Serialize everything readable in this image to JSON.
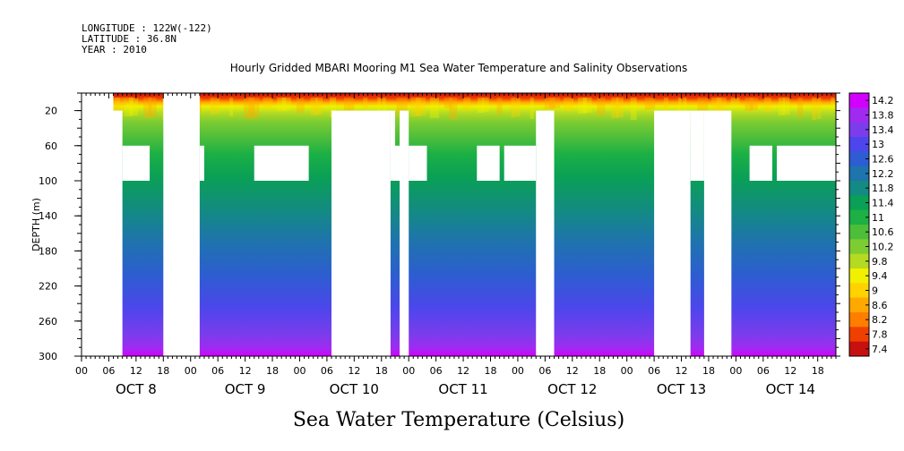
{
  "meta": {
    "longitude": "LONGITUDE : 122W(-122)",
    "latitude": "LATITUDE : 36.8N",
    "year": "YEAR : 2010"
  },
  "chart_data": {
    "type": "heatmap",
    "title": "Hourly Gridded MBARI Mooring M1 Sea Water Temperature and Salinity Observations",
    "xlabel": "Sea Water Temperature (Celsius)",
    "ylabel": "DEPTH (m)",
    "x_range_hours": [
      0,
      166
    ],
    "x_hour_tick_labels": [
      "00",
      "06",
      "12",
      "18"
    ],
    "x_day_labels": [
      "OCT  8",
      "OCT  9",
      "OCT 10",
      "OCT 11",
      "OCT 12",
      "OCT 13",
      "OCT 14"
    ],
    "y_range": [
      0,
      300
    ],
    "y_ticks": [
      20,
      60,
      100,
      140,
      180,
      220,
      260,
      300
    ],
    "y_inverted": true,
    "colorbar": {
      "values": [
        7.4,
        7.8,
        8.2,
        8.6,
        9,
        9.4,
        9.8,
        10.2,
        10.6,
        11,
        11.4,
        11.8,
        12.2,
        12.6,
        13,
        13.4,
        13.8,
        14.2
      ],
      "labels": [
        "14.2",
        "13.8",
        "13.4",
        "13",
        "12.6",
        "12.2",
        "11.8",
        "11.4",
        "11",
        "10.6",
        "10.2",
        "9.8",
        "9.4",
        "9",
        "8.6",
        "8.2",
        "7.8",
        "7.4"
      ],
      "colors": [
        "#d200ff",
        "#a12af0",
        "#7c3cec",
        "#4d46ec",
        "#2e5cd2",
        "#1e74ac",
        "#138a83",
        "#0aa055",
        "#1cb045",
        "#4cbe3a",
        "#7ccc32",
        "#b4da22",
        "#f0f000",
        "#ffd200",
        "#ffa800",
        "#ff7e00",
        "#f04000",
        "#c81010"
      ]
    },
    "missing_blocks": [
      {
        "hours": [
          0,
          7
        ],
        "depth": [
          0,
          300
        ]
      },
      {
        "hours": [
          7,
          9
        ],
        "depth": [
          20,
          300
        ]
      },
      {
        "hours": [
          9,
          15
        ],
        "depth": [
          60,
          100
        ]
      },
      {
        "hours": [
          18,
          26
        ],
        "depth": [
          0,
          300
        ]
      },
      {
        "hours": [
          26,
          27
        ],
        "depth": [
          60,
          100
        ]
      },
      {
        "hours": [
          38,
          50
        ],
        "depth": [
          60,
          100
        ]
      },
      {
        "hours": [
          55,
          68
        ],
        "depth": [
          20,
          300
        ]
      },
      {
        "hours": [
          68,
          69
        ],
        "depth": [
          20,
          100
        ]
      },
      {
        "hours": [
          69,
          72
        ],
        "depth": [
          60,
          100
        ]
      },
      {
        "hours": [
          70,
          72
        ],
        "depth": [
          20,
          300
        ]
      },
      {
        "hours": [
          72,
          76
        ],
        "depth": [
          60,
          100
        ]
      },
      {
        "hours": [
          87,
          92
        ],
        "depth": [
          60,
          100
        ]
      },
      {
        "hours": [
          93,
          100
        ],
        "depth": [
          60,
          100
        ]
      },
      {
        "hours": [
          100,
          104
        ],
        "depth": [
          20,
          300
        ]
      },
      {
        "hours": [
          126,
          134
        ],
        "depth": [
          20,
          300
        ]
      },
      {
        "hours": [
          134,
          137
        ],
        "depth": [
          20,
          100
        ]
      },
      {
        "hours": [
          137,
          143
        ],
        "depth": [
          20,
          300
        ]
      },
      {
        "hours": [
          147,
          152
        ],
        "depth": [
          60,
          100
        ]
      },
      {
        "hours": [
          153,
          166
        ],
        "depth": [
          60,
          100
        ]
      }
    ]
  }
}
